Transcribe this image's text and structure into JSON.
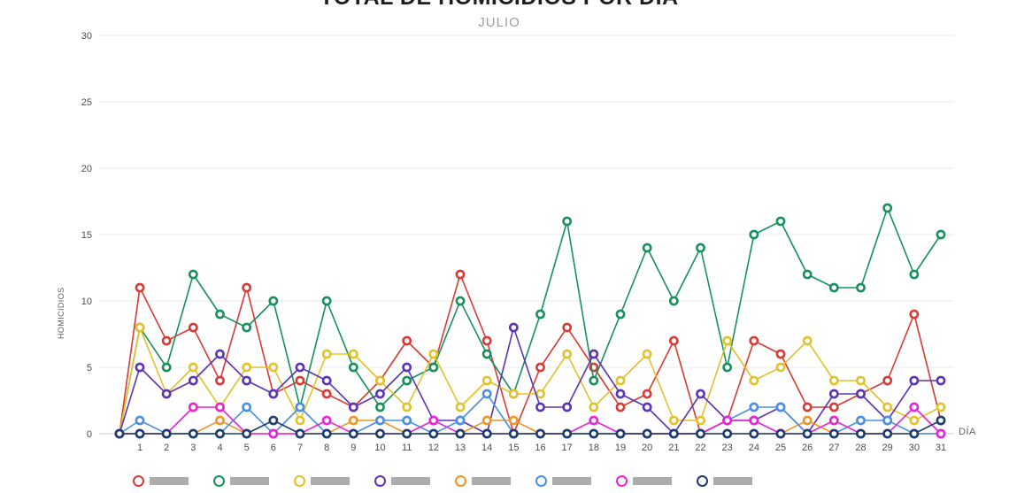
{
  "chart_data": {
    "type": "line",
    "title": "TOTAL DE HOMICIDIOS POR DÍA",
    "subtitle": "JULIO",
    "xlabel": "DÍA",
    "ylabel": "HOMICIDIOS",
    "x_days": [
      1,
      2,
      3,
      4,
      5,
      6,
      7,
      8,
      9,
      10,
      11,
      12,
      13,
      14,
      15,
      16,
      17,
      18,
      19,
      20,
      21,
      22,
      23,
      24,
      25,
      26,
      27,
      28,
      29,
      30,
      31
    ],
    "y_ticks": [
      0,
      5,
      10,
      15,
      20,
      25,
      30
    ],
    "ylim": [
      0,
      30
    ],
    "grid": "horizontal-major",
    "legend": "cut off at bottom edge of screenshot",
    "lines_start_at_zero_origin": true,
    "series": [
      {
        "name": "series-red",
        "color": "#d93a34",
        "values": [
          11,
          7,
          8,
          4,
          11,
          3,
          4,
          3,
          2,
          4,
          7,
          5,
          12,
          7,
          0,
          5,
          8,
          5,
          2,
          3,
          7,
          0,
          1,
          7,
          6,
          2,
          2,
          3,
          4,
          9,
          1
        ]
      },
      {
        "name": "series-green",
        "color": "#17915c",
        "values": [
          8,
          5,
          12,
          9,
          8,
          10,
          2,
          10,
          5,
          2,
          4,
          5,
          10,
          6,
          3,
          9,
          16,
          4,
          9,
          14,
          10,
          14,
          5,
          15,
          16,
          12,
          11,
          11,
          17,
          12,
          15
        ]
      },
      {
        "name": "series-yellow",
        "color": "#e2c229",
        "values": [
          8,
          3,
          5,
          2,
          5,
          5,
          1,
          6,
          6,
          4,
          2,
          6,
          2,
          4,
          3,
          3,
          6,
          2,
          4,
          6,
          1,
          1,
          7,
          4,
          5,
          7,
          4,
          4,
          2,
          1,
          2
        ]
      },
      {
        "name": "series-purple",
        "color": "#5b35b5",
        "values": [
          5,
          3,
          4,
          6,
          4,
          3,
          5,
          4,
          2,
          3,
          5,
          1,
          1,
          0,
          8,
          2,
          2,
          6,
          3,
          2,
          0,
          3,
          1,
          1,
          2,
          0,
          3,
          3,
          1,
          4,
          4
        ]
      },
      {
        "name": "series-orange",
        "color": "#ef9526",
        "values": [
          0,
          0,
          0,
          1,
          0,
          0,
          0,
          0,
          1,
          1,
          0,
          0,
          0,
          1,
          1,
          0,
          0,
          0,
          0,
          0,
          0,
          0,
          0,
          0,
          0,
          1,
          0,
          0,
          0,
          0,
          0
        ]
      },
      {
        "name": "series-blue",
        "color": "#4a8fe2",
        "values": [
          1,
          0,
          0,
          0,
          2,
          0,
          2,
          0,
          0,
          1,
          1,
          0,
          1,
          3,
          0,
          0,
          0,
          0,
          0,
          0,
          0,
          0,
          1,
          2,
          2,
          0,
          0,
          1,
          1,
          0,
          0
        ]
      },
      {
        "name": "series-magenta",
        "color": "#e823d8",
        "values": [
          0,
          0,
          2,
          2,
          0,
          0,
          0,
          1,
          0,
          0,
          0,
          1,
          0,
          0,
          0,
          0,
          0,
          1,
          0,
          0,
          0,
          0,
          1,
          1,
          0,
          0,
          1,
          0,
          0,
          2,
          0
        ]
      },
      {
        "name": "series-navy",
        "color": "#1c3d6e",
        "values": [
          0,
          0,
          0,
          0,
          0,
          1,
          0,
          0,
          0,
          0,
          0,
          0,
          0,
          0,
          0,
          0,
          0,
          0,
          0,
          0,
          0,
          0,
          0,
          0,
          0,
          0,
          0,
          0,
          0,
          0,
          1
        ]
      }
    ],
    "layout": {
      "axis_color": "#cccccc",
      "grid_color": "#e8e8e8",
      "tick_label_color": "#4d4d4d"
    }
  }
}
